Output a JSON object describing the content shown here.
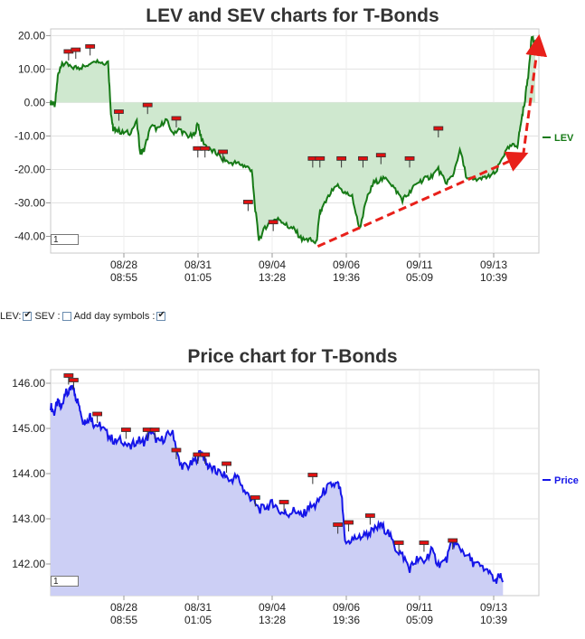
{
  "charts": [
    {
      "title": "LEV and SEV charts for T-Bonds",
      "zoom_value": "1",
      "legend": "LEV",
      "colors": {
        "line": "#167a16",
        "fill": "#cfe8cf",
        "arrow": "#e8201a"
      },
      "chart_data": {
        "type": "area",
        "series": [
          {
            "name": "LEV"
          }
        ],
        "ylim": [
          -45,
          22
        ],
        "y_ticks": [
          "20.00",
          "10.00",
          "0.00",
          "-10.00",
          "-20.00",
          "-30.00",
          "-40.00"
        ],
        "x_ticks": [
          {
            "date": "08/28",
            "time": "08:55"
          },
          {
            "date": "08/31",
            "time": "01:05"
          },
          {
            "date": "09/04",
            "time": "13:28"
          },
          {
            "date": "09/06",
            "time": "19:36"
          },
          {
            "date": "09/11",
            "time": "05:09"
          },
          {
            "date": "09/13",
            "time": "10:39"
          }
        ],
        "points": [
          [
            0,
            0
          ],
          [
            0.3,
            0
          ],
          [
            0.6,
            -1
          ],
          [
            1,
            8
          ],
          [
            1.4,
            11
          ],
          [
            2,
            11.5
          ],
          [
            3,
            10.5
          ],
          [
            4,
            10.5
          ],
          [
            5,
            11
          ],
          [
            6,
            13
          ],
          [
            7,
            12
          ],
          [
            8,
            12
          ],
          [
            8.4,
            -3
          ],
          [
            8.7,
            -8
          ],
          [
            9,
            -8
          ],
          [
            10,
            -9
          ],
          [
            11,
            -9
          ],
          [
            12,
            -6
          ],
          [
            12.5,
            -15
          ],
          [
            13,
            -14
          ],
          [
            14,
            -7
          ],
          [
            15,
            -8
          ],
          [
            16,
            -5
          ],
          [
            17,
            -9
          ],
          [
            18,
            -8
          ],
          [
            19,
            -10
          ],
          [
            20,
            -10
          ],
          [
            20.5,
            -6
          ],
          [
            21,
            -11
          ],
          [
            22,
            -14
          ],
          [
            23,
            -15
          ],
          [
            24,
            -17
          ],
          [
            25,
            -18
          ],
          [
            26,
            -18
          ],
          [
            27,
            -19
          ],
          [
            28,
            -20
          ],
          [
            28.4,
            -30
          ],
          [
            29,
            -41
          ],
          [
            30,
            -37
          ],
          [
            31,
            -35
          ],
          [
            32,
            -35
          ],
          [
            33,
            -37
          ],
          [
            34,
            -38
          ],
          [
            35,
            -41
          ],
          [
            36,
            -41
          ],
          [
            37,
            -42
          ],
          [
            37.5,
            -33
          ],
          [
            38,
            -31
          ],
          [
            39,
            -27
          ],
          [
            40,
            -25
          ],
          [
            41,
            -27
          ],
          [
            42,
            -28
          ],
          [
            43,
            -38
          ],
          [
            44,
            -29
          ],
          [
            45,
            -24
          ],
          [
            46,
            -23
          ],
          [
            47,
            -23
          ],
          [
            48,
            -26
          ],
          [
            49,
            -29
          ],
          [
            50,
            -27
          ],
          [
            51,
            -24
          ],
          [
            52,
            -23
          ],
          [
            53,
            -22
          ],
          [
            54,
            -20
          ],
          [
            55,
            -24
          ],
          [
            56,
            -22
          ],
          [
            57,
            -14
          ],
          [
            58,
            -23
          ],
          [
            59,
            -23
          ],
          [
            60,
            -23
          ],
          [
            61,
            -22
          ],
          [
            62,
            -21
          ],
          [
            63,
            -16
          ],
          [
            64,
            -13
          ],
          [
            65,
            -13
          ],
          [
            65.5,
            -6
          ],
          [
            66,
            0
          ],
          [
            66.5,
            8
          ],
          [
            67,
            20
          ],
          [
            67.5,
            17
          ]
        ],
        "day_symbols": [
          [
            2.5,
            15
          ],
          [
            3.5,
            15.5
          ],
          [
            5.5,
            16.5
          ],
          [
            9.5,
            -3
          ],
          [
            13.5,
            -1
          ],
          [
            17.5,
            -5
          ],
          [
            20.5,
            -14
          ],
          [
            21.5,
            -14
          ],
          [
            24,
            -15
          ],
          [
            27.5,
            -30
          ],
          [
            31,
            -36
          ],
          [
            36.5,
            -17
          ],
          [
            37.5,
            -17
          ],
          [
            40.5,
            -17
          ],
          [
            43.5,
            -17
          ],
          [
            46,
            -16
          ],
          [
            50,
            -17
          ],
          [
            54,
            -8
          ]
        ],
        "annotations": [
          {
            "type": "arrow",
            "from": [
              37.2,
              -43
            ],
            "to": [
              65.5,
              -16
            ]
          },
          {
            "type": "arrow",
            "from": [
              65.8,
              -16
            ],
            "to": [
              67.9,
              18
            ]
          }
        ]
      }
    },
    {
      "title": "Price chart for T-Bonds",
      "zoom_value": "1",
      "legend": "Price",
      "colors": {
        "line": "#1515e8",
        "fill": "#cccff5"
      },
      "chart_data": {
        "type": "area",
        "series": [
          {
            "name": "Price"
          }
        ],
        "ylim": [
          141.3,
          146.3
        ],
        "y_ticks": [
          "146.00",
          "145.00",
          "144.00",
          "143.00",
          "142.00"
        ],
        "x_ticks": [
          {
            "date": "08/28",
            "time": "08:55"
          },
          {
            "date": "08/31",
            "time": "01:05"
          },
          {
            "date": "09/04",
            "time": "13:28"
          },
          {
            "date": "09/06",
            "time": "19:36"
          },
          {
            "date": "09/11",
            "time": "05:09"
          },
          {
            "date": "09/13",
            "time": "10:39"
          }
        ],
        "points": [
          [
            0,
            145.5
          ],
          [
            0.5,
            145.35
          ],
          [
            1,
            145.6
          ],
          [
            1.5,
            145.45
          ],
          [
            2,
            145.8
          ],
          [
            2.5,
            145.75
          ],
          [
            3,
            145.95
          ],
          [
            3.5,
            145.7
          ],
          [
            4,
            145.5
          ],
          [
            4.5,
            145.2
          ],
          [
            5,
            145.15
          ],
          [
            5.5,
            145.3
          ],
          [
            6,
            145.1
          ],
          [
            7,
            145.05
          ],
          [
            8,
            144.85
          ],
          [
            9,
            144.7
          ],
          [
            10,
            144.75
          ],
          [
            11,
            144.55
          ],
          [
            12,
            144.75
          ],
          [
            13,
            144.7
          ],
          [
            14,
            144.9
          ],
          [
            15,
            144.7
          ],
          [
            16,
            144.8
          ],
          [
            17,
            144.95
          ],
          [
            18,
            144.2
          ],
          [
            19,
            144.15
          ],
          [
            20,
            144.25
          ],
          [
            21,
            144.5
          ],
          [
            21.5,
            144.3
          ],
          [
            22,
            144.15
          ],
          [
            23,
            144.05
          ],
          [
            24,
            144.0
          ],
          [
            25,
            143.85
          ],
          [
            26,
            143.95
          ],
          [
            27,
            143.6
          ],
          [
            28,
            143.45
          ],
          [
            29,
            143.2
          ],
          [
            30,
            143.25
          ],
          [
            31,
            143.35
          ],
          [
            32,
            143.15
          ],
          [
            33,
            143.1
          ],
          [
            34,
            143.2
          ],
          [
            35,
            143.05
          ],
          [
            36,
            143.25
          ],
          [
            37,
            143.3
          ],
          [
            38,
            143.6
          ],
          [
            39,
            143.75
          ],
          [
            40,
            143.75
          ],
          [
            40.5,
            143.55
          ],
          [
            41,
            142.45
          ],
          [
            42,
            142.55
          ],
          [
            43,
            142.6
          ],
          [
            44,
            142.65
          ],
          [
            45,
            142.75
          ],
          [
            46,
            142.85
          ],
          [
            47,
            142.7
          ],
          [
            48,
            142.35
          ],
          [
            49,
            142.2
          ],
          [
            50,
            141.9
          ],
          [
            51,
            142.1
          ],
          [
            52,
            142.05
          ],
          [
            53,
            142.3
          ],
          [
            54,
            142.0
          ],
          [
            55,
            142.05
          ],
          [
            56,
            142.5
          ],
          [
            57,
            142.35
          ],
          [
            58,
            142.2
          ],
          [
            59,
            142.0
          ],
          [
            60,
            141.95
          ],
          [
            61,
            141.8
          ],
          [
            62,
            141.6
          ],
          [
            62.5,
            141.75
          ],
          [
            63,
            141.6
          ]
        ],
        "day_symbols": [
          [
            2.5,
            146.15
          ],
          [
            3.2,
            146.05
          ],
          [
            6.5,
            145.3
          ],
          [
            10.5,
            144.95
          ],
          [
            13.5,
            144.95
          ],
          [
            14.5,
            144.95
          ],
          [
            17.5,
            144.5
          ],
          [
            20.5,
            144.4
          ],
          [
            21.5,
            144.4
          ],
          [
            24.5,
            144.2
          ],
          [
            28.5,
            143.45
          ],
          [
            32.5,
            143.35
          ],
          [
            36.5,
            143.95
          ],
          [
            40,
            142.85
          ],
          [
            41.5,
            142.9
          ],
          [
            44.5,
            143.05
          ],
          [
            48.5,
            142.45
          ],
          [
            52,
            142.45
          ],
          [
            56,
            142.5
          ]
        ]
      }
    }
  ],
  "controls": {
    "lev_label": "LEV:",
    "sev_label": "SEV :",
    "day_symbols_label": "Add day symbols :"
  }
}
